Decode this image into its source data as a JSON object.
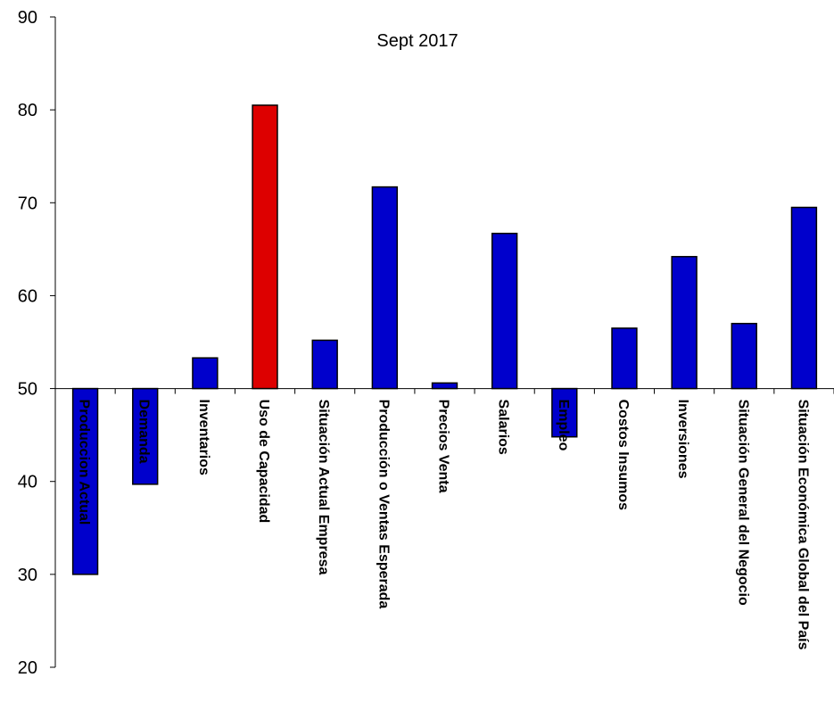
{
  "chart_data": {
    "type": "bar",
    "title": "Sept 2017",
    "xlabel": "",
    "ylabel": "",
    "ylim": [
      20,
      90
    ],
    "yticks": [
      20,
      30,
      40,
      50,
      60,
      70,
      80,
      90
    ],
    "baseline": 50,
    "grid": false,
    "categories": [
      "Produccion Actual",
      "Demanda",
      "Inventarios",
      "Uso de Capacidad",
      "Situación Actual Empresa",
      "Producción o Ventas Esperada",
      "Precios Venta",
      "Salarios",
      "Empleo",
      "Costos Insumos",
      "Inversiones",
      "Situación General del Negocio",
      "Situación Económica Global del País"
    ],
    "values": [
      30,
      39.7,
      53.3,
      80.5,
      55.2,
      71.7,
      50.6,
      66.7,
      44.8,
      56.5,
      64.2,
      57.0,
      69.5
    ],
    "colors": {
      "default": "#0000cc",
      "highlight": "#dd0000"
    },
    "highlight_index": 3
  }
}
